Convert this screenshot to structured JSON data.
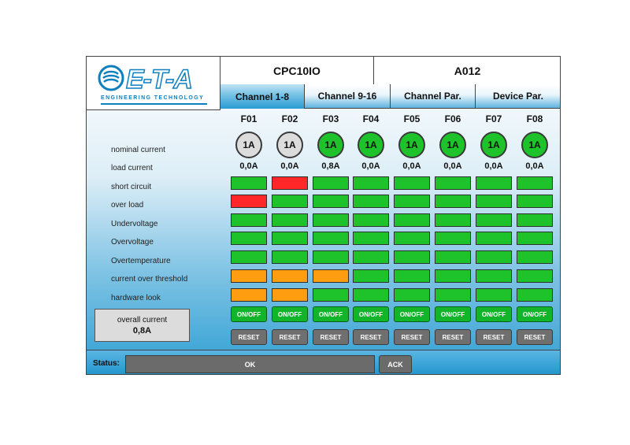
{
  "logo": {
    "text": "E-T-A",
    "subtitle": "ENGINEERING TECHNOLOGY"
  },
  "header": {
    "device": "CPC10IO",
    "code": "A012"
  },
  "tabs": [
    "Channel 1-8",
    "Channel 9-16",
    "Channel Par.",
    "Device Par."
  ],
  "active_tab": 0,
  "row_labels": {
    "nominal_current": "nominal current",
    "load_current": "load current",
    "short_circuit": "short circuit",
    "over_load": "over load",
    "undervoltage": "Undervoltage",
    "overvoltage": "Overvoltage",
    "overtemperature": "Overtemperature",
    "current_over_threshold": "current over threshold",
    "hardware_look": "hardware look"
  },
  "channels": [
    {
      "name": "F01",
      "nominal": "1A",
      "nominal_state": "grey",
      "load": "0,0A",
      "short_circuit": "green",
      "over_load": "red",
      "undervoltage": "green",
      "overvoltage": "green",
      "overtemperature": "green",
      "current_over_threshold": "orange",
      "hardware_look": "orange",
      "on_label": "ON/OFF",
      "reset_label": "RESET"
    },
    {
      "name": "F02",
      "nominal": "1A",
      "nominal_state": "grey",
      "load": "0,0A",
      "short_circuit": "red",
      "over_load": "green",
      "undervoltage": "green",
      "overvoltage": "green",
      "overtemperature": "green",
      "current_over_threshold": "orange",
      "hardware_look": "orange",
      "on_label": "ON/OFF",
      "reset_label": "RESET"
    },
    {
      "name": "F03",
      "nominal": "1A",
      "nominal_state": "green",
      "load": "0,8A",
      "short_circuit": "green",
      "over_load": "green",
      "undervoltage": "green",
      "overvoltage": "green",
      "overtemperature": "green",
      "current_over_threshold": "orange",
      "hardware_look": "green",
      "on_label": "ON/OFF",
      "reset_label": "RESET"
    },
    {
      "name": "F04",
      "nominal": "1A",
      "nominal_state": "green",
      "load": "0,0A",
      "short_circuit": "green",
      "over_load": "green",
      "undervoltage": "green",
      "overvoltage": "green",
      "overtemperature": "green",
      "current_over_threshold": "green",
      "hardware_look": "green",
      "on_label": "ON/OFF",
      "reset_label": "RESET"
    },
    {
      "name": "F05",
      "nominal": "1A",
      "nominal_state": "green",
      "load": "0,0A",
      "short_circuit": "green",
      "over_load": "green",
      "undervoltage": "green",
      "overvoltage": "green",
      "overtemperature": "green",
      "current_over_threshold": "green",
      "hardware_look": "green",
      "on_label": "ON/OFF",
      "reset_label": "RESET"
    },
    {
      "name": "F06",
      "nominal": "1A",
      "nominal_state": "green",
      "load": "0,0A",
      "short_circuit": "green",
      "over_load": "green",
      "undervoltage": "green",
      "overvoltage": "green",
      "overtemperature": "green",
      "current_over_threshold": "green",
      "hardware_look": "green",
      "on_label": "ON/OFF",
      "reset_label": "RESET"
    },
    {
      "name": "F07",
      "nominal": "1A",
      "nominal_state": "green",
      "load": "0,0A",
      "short_circuit": "green",
      "over_load": "green",
      "undervoltage": "green",
      "overvoltage": "green",
      "overtemperature": "green",
      "current_over_threshold": "green",
      "hardware_look": "green",
      "on_label": "ON/OFF",
      "reset_label": "RESET"
    },
    {
      "name": "F08",
      "nominal": "1A",
      "nominal_state": "green",
      "load": "0,0A",
      "short_circuit": "green",
      "over_load": "green",
      "undervoltage": "green",
      "overvoltage": "green",
      "overtemperature": "green",
      "current_over_threshold": "green",
      "hardware_look": "green",
      "on_label": "ON/OFF",
      "reset_label": "RESET"
    }
  ],
  "overall_current": {
    "label": "overall current",
    "value": "0,8A"
  },
  "status": {
    "label": "Status:",
    "value": "OK",
    "ack_label": "ACK"
  },
  "colors": {
    "green": "#1ec22b",
    "red": "#ff2727",
    "orange": "#ff9d11",
    "grey": "#dcdcdc",
    "brand_blue": "#0e7fbf"
  }
}
